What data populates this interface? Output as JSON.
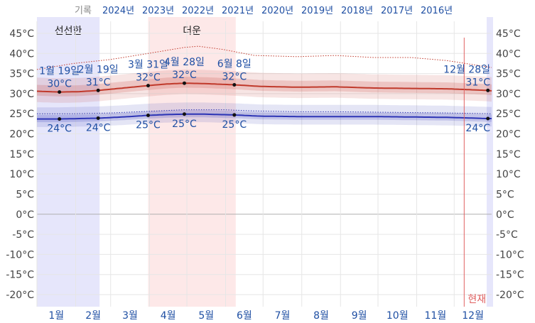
{
  "year_nav": {
    "record_label": "기록",
    "years": [
      "2024년",
      "2023년",
      "2022년",
      "2021년",
      "2020년",
      "2019년",
      "2018년",
      "2017년",
      "2016년"
    ]
  },
  "colors": {
    "high_line": "#c0392b",
    "low_line": "#2d34b5",
    "cool_band": "#e6e6fb",
    "hot_band": "#fde8e8",
    "now_line": "#e06060",
    "label": "#1f4fa3"
  },
  "chart_data": {
    "type": "line",
    "x_unit": "day_of_year",
    "ylim": [
      -23,
      48
    ],
    "y_ticks": [
      -20,
      -15,
      -10,
      -5,
      0,
      5,
      10,
      15,
      20,
      25,
      30,
      35,
      40,
      45
    ],
    "y_tick_labels": [
      "-20°C",
      "-15°C",
      "-10°C",
      "-5°C",
      "0°C",
      "5°C",
      "10°C",
      "15°C",
      "20°C",
      "25°C",
      "30°C",
      "35°C",
      "40°C",
      "45°C"
    ],
    "months": [
      "1월",
      "2월",
      "3월",
      "4월",
      "5월",
      "6월",
      "7월",
      "8월",
      "9월",
      "10월",
      "11월",
      "12월"
    ],
    "seasons": [
      {
        "label": "선선한",
        "start_day": 1,
        "end_day": 50,
        "kind": "cool"
      },
      {
        "label": "더운",
        "start_day": 90,
        "end_day": 159,
        "kind": "hot"
      },
      {
        "label": "",
        "start_day": 361,
        "end_day": 365,
        "kind": "cool"
      }
    ],
    "now": {
      "label": "현재",
      "day": 343
    },
    "series": [
      {
        "kind": "high",
        "mean": [
          [
            1,
            30.6
          ],
          [
            19,
            30.4
          ],
          [
            35,
            30.5
          ],
          [
            50,
            30.8
          ],
          [
            70,
            31.4
          ],
          [
            90,
            32.0
          ],
          [
            105,
            32.4
          ],
          [
            119,
            32.6
          ],
          [
            135,
            32.5
          ],
          [
            159,
            32.2
          ],
          [
            180,
            31.8
          ],
          [
            210,
            31.6
          ],
          [
            240,
            31.7
          ],
          [
            270,
            31.4
          ],
          [
            300,
            31.3
          ],
          [
            330,
            31.2
          ],
          [
            362,
            30.8
          ],
          [
            365,
            30.7
          ]
        ],
        "band_outer": [
          3.4,
          2.7
        ],
        "band_inner": [
          1.6,
          1.1
        ],
        "record": [
          [
            1,
            36.0
          ],
          [
            30,
            37.5
          ],
          [
            60,
            38.5
          ],
          [
            90,
            40.0
          ],
          [
            119,
            41.5
          ],
          [
            130,
            41.8
          ],
          [
            150,
            41.0
          ],
          [
            175,
            39.5
          ],
          [
            210,
            39.2
          ],
          [
            240,
            39.5
          ],
          [
            270,
            39.0
          ],
          [
            300,
            39.0
          ],
          [
            330,
            38.2
          ],
          [
            365,
            36.5
          ]
        ]
      },
      {
        "kind": "low",
        "mean": [
          [
            1,
            23.7
          ],
          [
            19,
            23.7
          ],
          [
            35,
            23.8
          ],
          [
            50,
            23.9
          ],
          [
            70,
            24.2
          ],
          [
            90,
            24.6
          ],
          [
            105,
            24.8
          ],
          [
            119,
            24.9
          ],
          [
            135,
            24.9
          ],
          [
            159,
            24.7
          ],
          [
            180,
            24.4
          ],
          [
            210,
            24.3
          ],
          [
            240,
            24.3
          ],
          [
            270,
            24.3
          ],
          [
            300,
            24.2
          ],
          [
            330,
            24.1
          ],
          [
            362,
            23.8
          ],
          [
            365,
            23.8
          ]
        ],
        "band_outer": [
          2.9,
          2.0
        ],
        "band_inner": [
          1.0,
          0.8
        ],
        "record": [
          [
            1,
            25.0
          ],
          [
            30,
            25.0
          ],
          [
            60,
            25.2
          ],
          [
            90,
            25.6
          ],
          [
            119,
            26.0
          ],
          [
            150,
            26.0
          ],
          [
            175,
            25.7
          ],
          [
            210,
            25.5
          ],
          [
            240,
            25.5
          ],
          [
            270,
            25.4
          ],
          [
            300,
            25.3
          ],
          [
            330,
            25.2
          ],
          [
            365,
            25.0
          ]
        ]
      }
    ],
    "annotations": [
      {
        "date": "1월 19일",
        "value": 30,
        "value_label": "30°C",
        "series": "high",
        "day": 19
      },
      {
        "date": "2월 19일",
        "value": 31,
        "value_label": "31°C",
        "series": "high",
        "day": 50
      },
      {
        "date": "3월 31일",
        "value": 32,
        "value_label": "32°C",
        "series": "high",
        "day": 90
      },
      {
        "date": "4월 28일",
        "value": 32,
        "value_label": "32°C",
        "series": "high",
        "day": 119
      },
      {
        "date": "6월 8일",
        "value": 32,
        "value_label": "32°C",
        "series": "high",
        "day": 159
      },
      {
        "date": "12월 28일",
        "value": 31,
        "value_label": "31°C",
        "series": "high",
        "day": 362
      },
      {
        "date": "",
        "value": 24,
        "value_label": "24°C",
        "series": "low",
        "day": 19
      },
      {
        "date": "",
        "value": 24,
        "value_label": "24°C",
        "series": "low",
        "day": 50
      },
      {
        "date": "",
        "value": 25,
        "value_label": "25°C",
        "series": "low",
        "day": 90
      },
      {
        "date": "",
        "value": 25,
        "value_label": "25°C",
        "series": "low",
        "day": 119
      },
      {
        "date": "",
        "value": 25,
        "value_label": "25°C",
        "series": "low",
        "day": 159
      },
      {
        "date": "",
        "value": 24,
        "value_label": "24°C",
        "series": "low",
        "day": 362
      }
    ]
  }
}
